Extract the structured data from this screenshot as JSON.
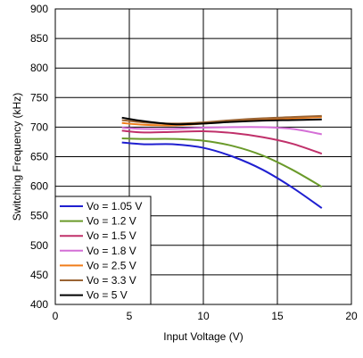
{
  "chart_data": {
    "type": "line",
    "xlabel": "Input Voltage (V)",
    "ylabel": "Switching Frequency (kHz)",
    "xlim": [
      0,
      20
    ],
    "ylim": [
      400,
      900
    ],
    "xticks": [
      "0",
      "5",
      "10",
      "15",
      "20"
    ],
    "yticks": [
      "400",
      "450",
      "500",
      "550",
      "600",
      "650",
      "700",
      "750",
      "800",
      "850",
      "900"
    ],
    "grid": true,
    "legend_position": "bottom-left",
    "series": [
      {
        "name": "Vo = 1.05 V",
        "color": "#1f1fd0",
        "x": [
          4.5,
          6,
          8,
          10,
          12,
          14,
          16,
          18
        ],
        "y": [
          674,
          671,
          671,
          665,
          650,
          628,
          598,
          563
        ]
      },
      {
        "name": "Vo = 1.2 V",
        "color": "#6a9a2a",
        "x": [
          4.5,
          6,
          8,
          10,
          12,
          14,
          16,
          18
        ],
        "y": [
          681,
          680,
          680,
          677,
          668,
          652,
          628,
          599
        ]
      },
      {
        "name": "Vo = 1.5 V",
        "color": "#c0306a",
        "x": [
          4.5,
          6,
          8,
          10,
          12,
          14,
          16,
          18
        ],
        "y": [
          694,
          691,
          692,
          693,
          690,
          683,
          672,
          655
        ]
      },
      {
        "name": "Vo = 1.8 V",
        "color": "#d46fd6",
        "x": [
          4.5,
          6,
          8,
          10,
          12,
          14,
          16,
          18
        ],
        "y": [
          699,
          697,
          697,
          699,
          700,
          700,
          697,
          688
        ]
      },
      {
        "name": "Vo = 2.5 V",
        "color": "#f07d1a",
        "x": [
          4.5,
          6,
          8,
          10,
          12,
          14,
          16,
          18
        ],
        "y": [
          707,
          704,
          703,
          706,
          710,
          713,
          715,
          717
        ]
      },
      {
        "name": "Vo = 3.3 V",
        "color": "#9a6434",
        "x": [
          4.5,
          6,
          8,
          10,
          12,
          14,
          16,
          18
        ],
        "y": [
          712,
          708,
          706,
          708,
          712,
          715,
          717,
          719
        ]
      },
      {
        "name": "Vo = 5 V",
        "color": "#000000",
        "x": [
          4.5,
          6,
          8,
          10,
          12,
          14,
          16,
          18
        ],
        "y": [
          716,
          710,
          705,
          706,
          709,
          711,
          712,
          713
        ]
      }
    ]
  }
}
